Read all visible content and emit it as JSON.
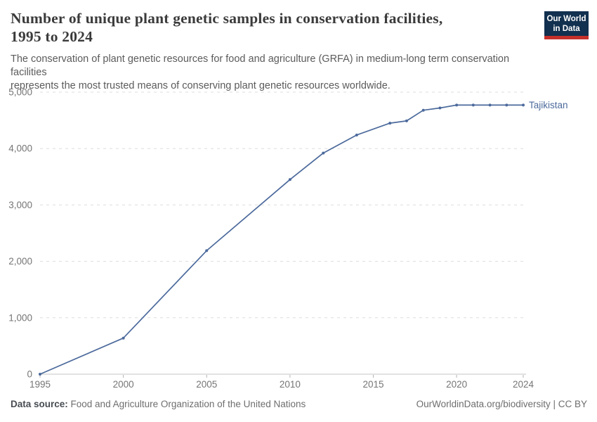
{
  "header": {
    "title_lines": {
      "0": "Number of unique plant genetic samples in conservation facilities,",
      "1": "1995 to 2024"
    },
    "subtitle_lines": {
      "0": "The conservation of plant genetic resources for food and agriculture (GRFA) in medium-long term conservation facilities",
      "1": "represents the most trusted means of conserving plant genetic resources worldwide."
    },
    "logo": {
      "line1": "Our World",
      "line2": "in Data",
      "bg_color": "#12304F",
      "accent_color": "#C5302B"
    }
  },
  "chart_data": {
    "type": "line",
    "title": "Number of unique plant genetic samples in conservation facilities, 1995 to 2024",
    "xlabel": "",
    "ylabel": "",
    "x": [
      1995,
      2000,
      2005,
      2010,
      2012,
      2014,
      2016,
      2017,
      2018,
      2019,
      2020,
      2021,
      2022,
      2023,
      2024
    ],
    "series": [
      {
        "name": "Tajikistan",
        "color": "#4C6A9C",
        "values": [
          0,
          640,
          2190,
          3450,
          3920,
          4240,
          4450,
          4490,
          4680,
          4720,
          4770,
          4770,
          4770,
          4770,
          4770
        ]
      }
    ],
    "xlim": [
      1995,
      2024
    ],
    "ylim": [
      0,
      5000
    ],
    "xticks": [
      1995,
      2000,
      2005,
      2010,
      2015,
      2020,
      2024
    ],
    "yticks": [
      0,
      1000,
      2000,
      3000,
      4000,
      5000
    ],
    "ytick_labels": [
      "0",
      "1,000",
      "2,000",
      "3,000",
      "4,000",
      "5,000"
    ],
    "grid": "horizontal-dashed",
    "legend_position": "end-of-line-label",
    "marker": "point"
  },
  "footer": {
    "source_label": "Data source:",
    "source_text": " Food and Agriculture Organization of the United Nations",
    "attribution": "OurWorldinData.org/biodiversity | CC BY"
  }
}
